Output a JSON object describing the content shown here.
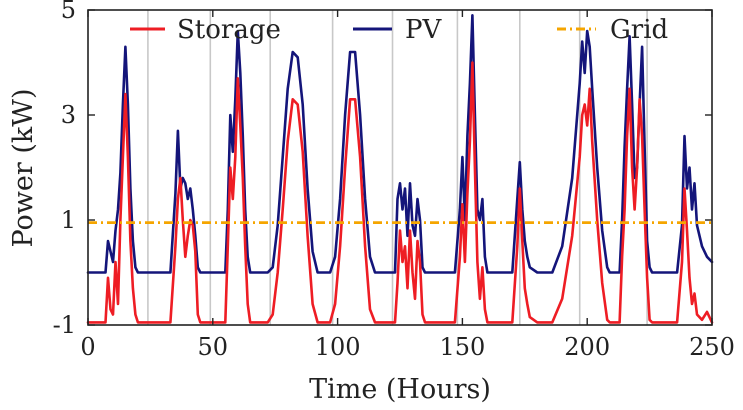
{
  "chart_data": {
    "type": "line",
    "xlabel": "Time (Hours)",
    "ylabel": "Power (kW)",
    "xlim": [
      0,
      250
    ],
    "ylim": [
      -1,
      5
    ],
    "xticks": [
      0,
      50,
      100,
      150,
      200,
      250
    ],
    "yticks": [
      -1,
      1,
      3,
      5
    ],
    "xtick_labels": [
      "0",
      "50",
      "100",
      "150",
      "200",
      "250"
    ],
    "ytick_labels": [
      "-1",
      "1",
      "3",
      "5"
    ],
    "grid": "vertical lines at day boundaries",
    "vgrid_x": [
      24,
      49,
      73,
      98,
      122,
      148,
      173,
      197,
      224
    ],
    "legend_position": "top",
    "series": [
      {
        "name": "Storage",
        "color": "#ee1d24",
        "style": "solid",
        "points": [
          [
            0,
            -0.95
          ],
          [
            7,
            -0.95
          ],
          [
            8,
            -0.1
          ],
          [
            9,
            -0.7
          ],
          [
            10,
            -0.8
          ],
          [
            11,
            0.2
          ],
          [
            12,
            -0.6
          ],
          [
            13,
            1.0
          ],
          [
            14,
            2.2
          ],
          [
            15,
            3.4
          ],
          [
            16,
            2.2
          ],
          [
            17,
            0.6
          ],
          [
            18,
            -0.3
          ],
          [
            19,
            -0.8
          ],
          [
            20,
            -0.95
          ],
          [
            33,
            -0.95
          ],
          [
            35,
            0.5
          ],
          [
            36,
            1.4
          ],
          [
            37,
            1.8
          ],
          [
            38,
            1.0
          ],
          [
            39,
            0.3
          ],
          [
            40,
            0.7
          ],
          [
            41,
            1.0
          ],
          [
            42,
            0.9
          ],
          [
            43,
            0.4
          ],
          [
            44,
            -0.8
          ],
          [
            45,
            -0.95
          ],
          [
            55,
            -0.95
          ],
          [
            56,
            0.5
          ],
          [
            57,
            2.0
          ],
          [
            58,
            1.4
          ],
          [
            59,
            2.2
          ],
          [
            60,
            3.7
          ],
          [
            61,
            2.8
          ],
          [
            62,
            1.8
          ],
          [
            63,
            0.5
          ],
          [
            64,
            -0.6
          ],
          [
            65,
            -0.95
          ],
          [
            72,
            -0.95
          ],
          [
            74,
            -0.8
          ],
          [
            76,
            0.0
          ],
          [
            78,
            1.2
          ],
          [
            80,
            2.5
          ],
          [
            82,
            3.3
          ],
          [
            84,
            3.2
          ],
          [
            86,
            2.3
          ],
          [
            88,
            0.7
          ],
          [
            90,
            -0.6
          ],
          [
            92,
            -0.95
          ],
          [
            97,
            -0.95
          ],
          [
            99,
            -0.6
          ],
          [
            101,
            0.5
          ],
          [
            103,
            2.0
          ],
          [
            105,
            3.3
          ],
          [
            107,
            3.3
          ],
          [
            109,
            2.2
          ],
          [
            111,
            0.5
          ],
          [
            113,
            -0.7
          ],
          [
            115,
            -0.95
          ],
          [
            123,
            -0.95
          ],
          [
            124,
            -0.2
          ],
          [
            125,
            0.8
          ],
          [
            126,
            0.2
          ],
          [
            127,
            0.5
          ],
          [
            128,
            -0.3
          ],
          [
            129,
            0.8
          ],
          [
            130,
            0.0
          ],
          [
            131,
            -0.5
          ],
          [
            132,
            0.6
          ],
          [
            133,
            0.2
          ],
          [
            134,
            -0.8
          ],
          [
            135,
            -0.95
          ],
          [
            147,
            -0.95
          ],
          [
            149,
            0.3
          ],
          [
            150,
            1.3
          ],
          [
            151,
            0.2
          ],
          [
            152,
            1.5
          ],
          [
            153,
            2.5
          ],
          [
            154,
            4.0
          ],
          [
            155,
            2.0
          ],
          [
            156,
            0.2
          ],
          [
            157,
            -0.5
          ],
          [
            158,
            0.1
          ],
          [
            159,
            -0.7
          ],
          [
            160,
            -0.95
          ],
          [
            170,
            -0.95
          ],
          [
            172,
            0.5
          ],
          [
            173,
            1.6
          ],
          [
            174,
            0.6
          ],
          [
            175,
            -0.3
          ],
          [
            176,
            -0.6
          ],
          [
            177,
            -0.85
          ],
          [
            180,
            -0.95
          ],
          [
            186,
            -0.95
          ],
          [
            190,
            -0.5
          ],
          [
            194,
            0.7
          ],
          [
            197,
            2.2
          ],
          [
            198,
            3.0
          ],
          [
            199,
            3.2
          ],
          [
            200,
            2.8
          ],
          [
            201,
            3.5
          ],
          [
            202,
            2.5
          ],
          [
            204,
            1.0
          ],
          [
            206,
            -0.2
          ],
          [
            208,
            -0.9
          ],
          [
            209,
            -0.95
          ],
          [
            213,
            -0.95
          ],
          [
            214,
            0.3
          ],
          [
            215,
            1.2
          ],
          [
            216,
            2.6
          ],
          [
            217,
            3.5
          ],
          [
            218,
            2.0
          ],
          [
            219,
            1.2
          ],
          [
            220,
            2.0
          ],
          [
            221,
            3.3
          ],
          [
            222,
            2.6
          ],
          [
            223,
            1.2
          ],
          [
            224,
            -0.1
          ],
          [
            225,
            -0.9
          ],
          [
            226,
            -0.95
          ],
          [
            236,
            -0.95
          ],
          [
            238,
            0.2
          ],
          [
            239,
            1.6
          ],
          [
            240,
            0.8
          ],
          [
            241,
            -0.1
          ],
          [
            242,
            -0.6
          ],
          [
            243,
            -0.4
          ],
          [
            244,
            -0.8
          ],
          [
            246,
            -0.9
          ],
          [
            248,
            -0.75
          ],
          [
            250,
            -0.95
          ]
        ]
      },
      {
        "name": "PV",
        "color": "#14157a",
        "style": "solid",
        "points": [
          [
            0,
            0
          ],
          [
            7,
            0
          ],
          [
            8,
            0.6
          ],
          [
            9,
            0.4
          ],
          [
            10,
            0.2
          ],
          [
            11,
            0.8
          ],
          [
            12,
            1.2
          ],
          [
            13,
            1.9
          ],
          [
            14,
            3.2
          ],
          [
            15,
            4.3
          ],
          [
            16,
            3.2
          ],
          [
            17,
            1.6
          ],
          [
            18,
            0.6
          ],
          [
            19,
            0.1
          ],
          [
            20,
            0
          ],
          [
            33,
            0
          ],
          [
            35,
            1.5
          ],
          [
            36,
            2.7
          ],
          [
            37,
            1.6
          ],
          [
            38,
            1.8
          ],
          [
            39,
            1.7
          ],
          [
            40,
            1.4
          ],
          [
            41,
            1.6
          ],
          [
            42,
            1.2
          ],
          [
            43,
            0.7
          ],
          [
            44,
            0.1
          ],
          [
            45,
            0
          ],
          [
            55,
            0
          ],
          [
            56,
            1.2
          ],
          [
            57,
            3.0
          ],
          [
            58,
            2.3
          ],
          [
            59,
            3.3
          ],
          [
            60,
            4.6
          ],
          [
            61,
            3.8
          ],
          [
            62,
            2.6
          ],
          [
            63,
            1.2
          ],
          [
            64,
            0.3
          ],
          [
            65,
            0
          ],
          [
            72,
            0
          ],
          [
            74,
            0.1
          ],
          [
            76,
            0.9
          ],
          [
            78,
            2.2
          ],
          [
            80,
            3.5
          ],
          [
            82,
            4.2
          ],
          [
            84,
            4.1
          ],
          [
            86,
            3.2
          ],
          [
            88,
            1.6
          ],
          [
            90,
            0.4
          ],
          [
            92,
            0
          ],
          [
            97,
            0
          ],
          [
            99,
            0.3
          ],
          [
            101,
            1.4
          ],
          [
            103,
            3.0
          ],
          [
            105,
            4.2
          ],
          [
            107,
            4.2
          ],
          [
            109,
            3.0
          ],
          [
            111,
            1.4
          ],
          [
            113,
            0.3
          ],
          [
            115,
            0
          ],
          [
            123,
            0
          ],
          [
            124,
            1.4
          ],
          [
            125,
            1.7
          ],
          [
            126,
            1.2
          ],
          [
            127,
            1.6
          ],
          [
            128,
            0.7
          ],
          [
            129,
            1.7
          ],
          [
            130,
            0.9
          ],
          [
            131,
            0.7
          ],
          [
            132,
            1.4
          ],
          [
            133,
            1.0
          ],
          [
            134,
            0.1
          ],
          [
            135,
            0
          ],
          [
            147,
            0
          ],
          [
            149,
            1.2
          ],
          [
            150,
            2.2
          ],
          [
            151,
            1.0
          ],
          [
            152,
            2.6
          ],
          [
            153,
            3.6
          ],
          [
            154,
            4.9
          ],
          [
            155,
            3.0
          ],
          [
            156,
            1.2
          ],
          [
            157,
            1.0
          ],
          [
            158,
            1.4
          ],
          [
            159,
            0.3
          ],
          [
            160,
            0
          ],
          [
            170,
            0
          ],
          [
            172,
            1.4
          ],
          [
            173,
            2.1
          ],
          [
            174,
            1.2
          ],
          [
            175,
            0.6
          ],
          [
            176,
            0.3
          ],
          [
            177,
            0.1
          ],
          [
            180,
            0
          ],
          [
            186,
            0
          ],
          [
            190,
            0.5
          ],
          [
            194,
            1.8
          ],
          [
            197,
            3.6
          ],
          [
            198,
            4.4
          ],
          [
            199,
            3.8
          ],
          [
            200,
            4.6
          ],
          [
            201,
            4.3
          ],
          [
            202,
            3.5
          ],
          [
            204,
            2.0
          ],
          [
            206,
            0.8
          ],
          [
            208,
            0.1
          ],
          [
            209,
            0
          ],
          [
            213,
            0
          ],
          [
            214,
            1.0
          ],
          [
            215,
            2.4
          ],
          [
            216,
            3.5
          ],
          [
            217,
            4.5
          ],
          [
            218,
            3.2
          ],
          [
            219,
            1.8
          ],
          [
            220,
            2.0
          ],
          [
            221,
            3.2
          ],
          [
            222,
            4.3
          ],
          [
            223,
            2.4
          ],
          [
            224,
            0.6
          ],
          [
            225,
            0.1
          ],
          [
            226,
            0
          ],
          [
            236,
            0
          ],
          [
            238,
            0.9
          ],
          [
            239,
            2.6
          ],
          [
            240,
            1.6
          ],
          [
            241,
            2.0
          ],
          [
            242,
            1.2
          ],
          [
            243,
            1.7
          ],
          [
            244,
            0.9
          ],
          [
            246,
            0.5
          ],
          [
            248,
            0.3
          ],
          [
            250,
            0.2
          ]
        ]
      },
      {
        "name": "Grid",
        "color": "#f5a500",
        "style": "dash-dot",
        "points": [
          [
            0,
            0.95
          ],
          [
            250,
            0.95
          ]
        ]
      }
    ]
  }
}
